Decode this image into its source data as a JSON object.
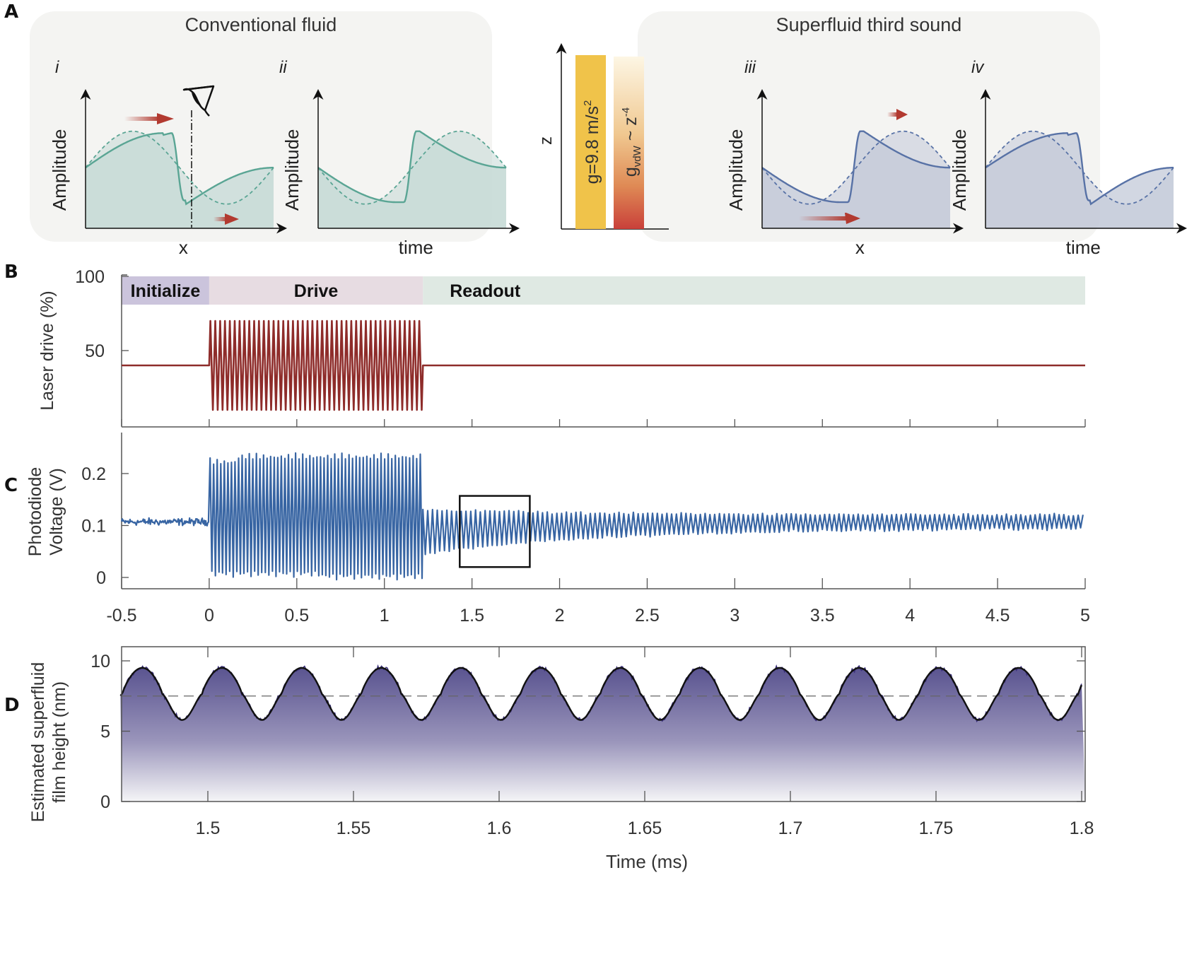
{
  "figure": {
    "panel_labels": [
      "A",
      "B",
      "C",
      "D"
    ]
  },
  "panel_a": {
    "left_box_title": "Conventional fluid",
    "right_box_title": "Superfluid third sound",
    "subpanels": [
      {
        "label": "i",
        "ylabel": "Amplitude",
        "xlabel": "x",
        "color": "#5aa594",
        "fill": "#c5d9d5"
      },
      {
        "label": "ii",
        "ylabel": "Amplitude",
        "xlabel": "time",
        "color": "#5aa594",
        "fill": "#c5d9d5"
      },
      {
        "label": "iii",
        "ylabel": "Amplitude",
        "xlabel": "x",
        "color": "#5872a6",
        "fill": "#c3c9d8"
      },
      {
        "label": "iv",
        "ylabel": "Amplitude",
        "xlabel": "time",
        "color": "#5872a6",
        "fill": "#c3c9d8"
      }
    ],
    "center": {
      "axis_label": "z",
      "bar1_label": "g=9.8 m/s²",
      "bar1_label_main": "g=9.8 m/s",
      "bar1_label_sup": "2",
      "bar2_label_g": "g",
      "bar2_label_sub": "vdW",
      "bar2_label_rest": " ~ z",
      "bar2_label_sup": "-4",
      "bar1_color": "#f0c34a",
      "bar2_color_top": "#fdf6e4",
      "bar2_color_bottom": "#c9403a"
    },
    "arrow_color": "#b23a30"
  },
  "chart_data": [
    {
      "id": "B",
      "type": "line",
      "title": "",
      "xlabel": "",
      "ylabel": "Laser drive (%)",
      "xlim": [
        -0.5,
        5
      ],
      "ylim": [
        0,
        100
      ],
      "yticks": [
        50,
        100
      ],
      "yticklabels": [
        "50",
        "100"
      ],
      "xticks": [
        -0.5,
        0,
        0.5,
        1,
        1.5,
        2,
        2.5,
        3,
        3.5,
        4,
        4.5,
        5
      ],
      "phases": [
        {
          "label": "Initialize",
          "start": -0.5,
          "end": 0,
          "color": "#cbc4dc"
        },
        {
          "label": "Drive",
          "start": 0,
          "end": 1.22,
          "color": "#e7dce2"
        },
        {
          "label": "Readout",
          "start": 1.22,
          "end": 5,
          "color": "#dfe9e3"
        }
      ],
      "series": [
        {
          "name": "Laser drive",
          "color": "#8e2c2a",
          "baseline": 40,
          "drive_start": 0,
          "drive_end": 1.22,
          "drive_max": 70,
          "drive_min": 10,
          "drive_cycles": 44
        }
      ]
    },
    {
      "id": "C",
      "type": "line",
      "title": "",
      "xlabel": "",
      "ylabel": "Photodiode Voltage (V)",
      "ylabel_lines": [
        "Photodiode",
        "Voltage (V)"
      ],
      "xlim": [
        -0.5,
        5
      ],
      "ylim": [
        -0.03,
        0.27
      ],
      "yticks": [
        0,
        0.1,
        0.2
      ],
      "yticklabels": [
        "0",
        "0.1",
        "0.2"
      ],
      "xticks": [
        -0.5,
        0,
        0.5,
        1,
        1.5,
        2,
        2.5,
        3,
        3.5,
        4,
        4.5,
        5
      ],
      "xticklabels": [
        "-0.5",
        "0",
        "0.5",
        "1",
        "1.5",
        "2",
        "2.5",
        "3",
        "3.5",
        "4",
        "4.5",
        "5"
      ],
      "series": [
        {
          "name": "Photodiode voltage",
          "color": "#3865a3",
          "baseline_mean": 0.107,
          "initialize_noise": 0.01,
          "drive_max": 0.24,
          "drive_min": 0.0,
          "readout_initial_max": 0.13,
          "readout_initial_min": 0.045,
          "readout_final_max": 0.12,
          "readout_final_min": 0.095
        }
      ],
      "zoom_box": {
        "x_start": 1.43,
        "x_end": 1.83,
        "y_min": 0.02,
        "y_max": 0.157
      }
    },
    {
      "id": "D",
      "type": "area",
      "title": "",
      "xlabel": "Time (ms)",
      "ylabel": "Estimated superfluid film height (nm)",
      "ylabel_lines": [
        "Estimated superfluid",
        "film height (nm)"
      ],
      "xlim": [
        1.47,
        1.8
      ],
      "ylim": [
        0,
        11
      ],
      "yticks": [
        0,
        5,
        10
      ],
      "yticklabels": [
        "0",
        "5",
        "10"
      ],
      "xticks": [
        1.5,
        1.55,
        1.6,
        1.65,
        1.7,
        1.75,
        1.8
      ],
      "xticklabels": [
        "1.5",
        "1.55",
        "1.6",
        "1.65",
        "1.7",
        "1.75",
        "1.8"
      ],
      "reference_line": 7.5,
      "series": [
        {
          "name": "Film height",
          "color": "#3a2f7a",
          "smooth_color": "#111111",
          "fill_top": "#5a5490",
          "fill_bottom": "#f5f5f7",
          "period": 0.02735,
          "first_peak": 1.4775,
          "max": 9.5,
          "min": 5.8,
          "start_value": 6.8,
          "end_value": 7.9
        }
      ]
    }
  ]
}
